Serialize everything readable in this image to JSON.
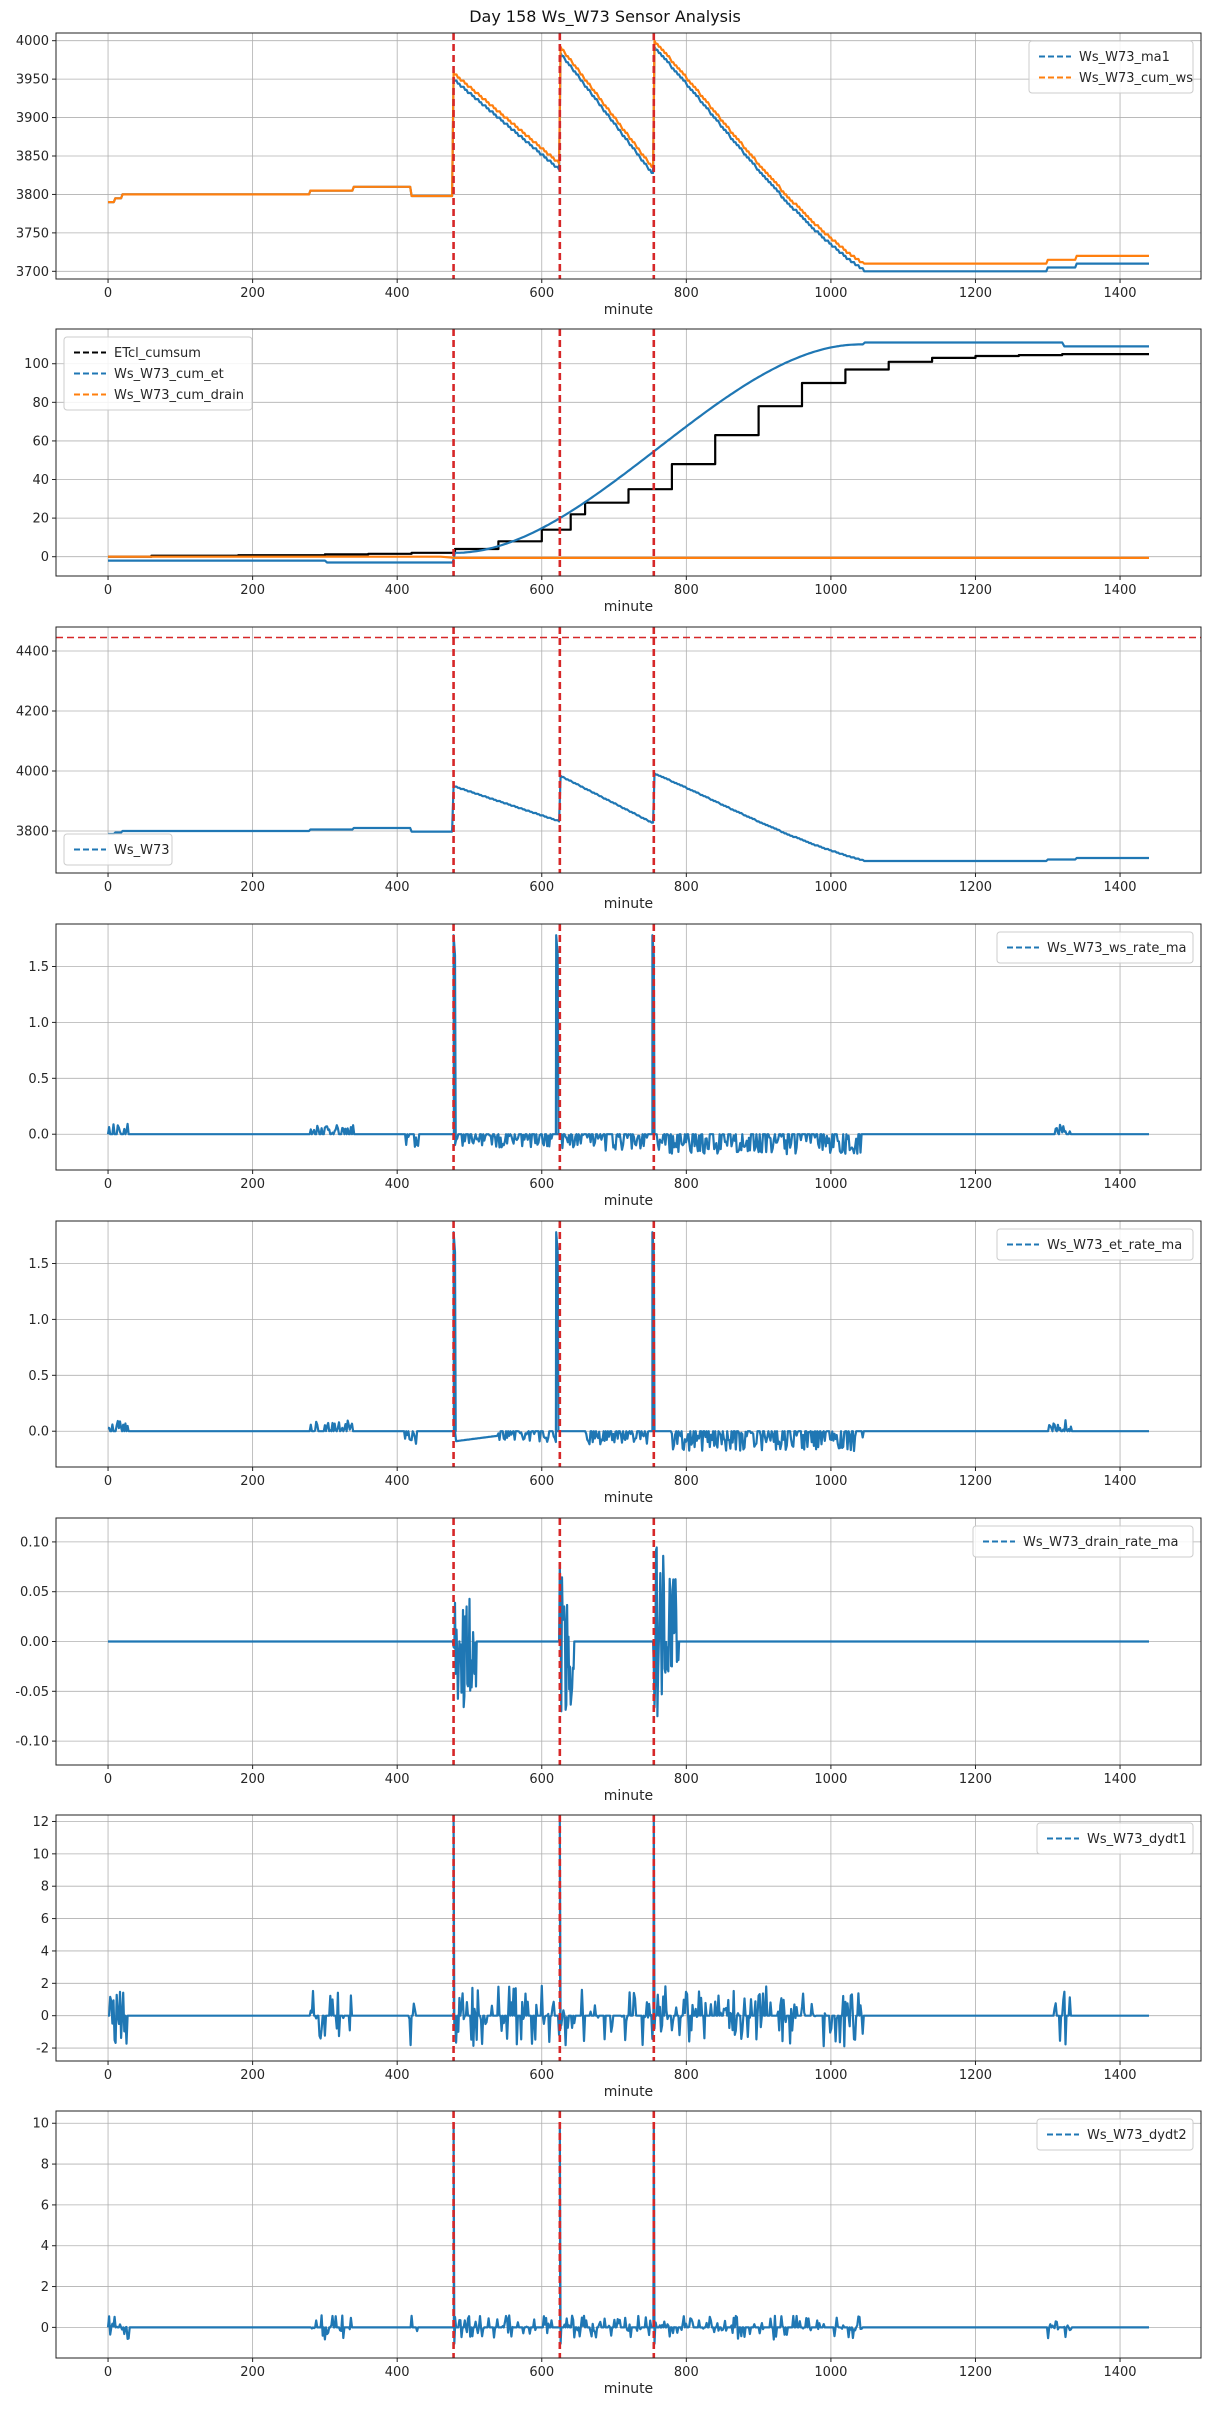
{
  "figure": {
    "title": "Day 158 Ws_W73 Sensor Analysis"
  },
  "colors": {
    "blue": "#1f77b4",
    "orange": "#ff7f0e",
    "black": "#000000",
    "red": "#d62728",
    "grid": "#b0b0b0"
  },
  "event_minutes": [
    478,
    625,
    755
  ],
  "chart_data": [
    {
      "type": "line",
      "title": "",
      "xlabel": "minute",
      "ylabel": "",
      "xlim": [
        -72,
        1512
      ],
      "ylim": [
        3690,
        4010
      ],
      "xticks": [
        0,
        200,
        400,
        600,
        800,
        1000,
        1200,
        1400
      ],
      "yticks": [
        3700,
        3750,
        3800,
        3850,
        3900,
        3950,
        4000
      ],
      "legend_loc": "top-right",
      "series": [
        {
          "name": "Ws_W73_ma1",
          "color": "#1f77b4",
          "style": "dashed",
          "profile": "weight_shifted"
        },
        {
          "name": "Ws_W73_cum_ws",
          "color": "#ff7f0e",
          "style": "dashed",
          "profile": "weight"
        }
      ]
    },
    {
      "type": "line",
      "title": "",
      "xlabel": "minute",
      "ylabel": "",
      "xlim": [
        -72,
        1512
      ],
      "ylim": [
        -10,
        118
      ],
      "xticks": [
        0,
        200,
        400,
        600,
        800,
        1000,
        1200,
        1400
      ],
      "yticks": [
        0,
        20,
        40,
        60,
        80,
        100
      ],
      "legend_loc": "top-left",
      "series": [
        {
          "name": "ETcl_cumsum",
          "color": "#000000",
          "style": "dashed",
          "profile": "etcl_step"
        },
        {
          "name": "Ws_W73_cum_et",
          "color": "#1f77b4",
          "style": "dashed",
          "profile": "cum_et"
        },
        {
          "name": "Ws_W73_cum_drain",
          "color": "#ff7f0e",
          "style": "dashed",
          "profile": "cum_drain"
        }
      ]
    },
    {
      "type": "line",
      "title": "",
      "xlabel": "minute",
      "ylabel": "",
      "xlim": [
        -72,
        1512
      ],
      "ylim": [
        3660,
        4480
      ],
      "xticks": [
        0,
        200,
        400,
        600,
        800,
        1000,
        1200,
        1400
      ],
      "yticks": [
        3800,
        4000,
        4200,
        4400
      ],
      "hline": 4445,
      "legend_loc": "bottom-left",
      "series": [
        {
          "name": "Ws_W73",
          "color": "#1f77b4",
          "style": "dashed",
          "profile": "weight_shifted"
        }
      ]
    },
    {
      "type": "line",
      "title": "",
      "xlabel": "minute",
      "ylabel": "",
      "xlim": [
        -72,
        1512
      ],
      "ylim": [
        -0.32,
        1.88
      ],
      "xticks": [
        0,
        200,
        400,
        600,
        800,
        1000,
        1200,
        1400
      ],
      "yticks": [
        0.0,
        0.5,
        1.0,
        1.5
      ],
      "legend_loc": "top-right",
      "series": [
        {
          "name": "Ws_W73_ws_rate_ma",
          "color": "#1f77b4",
          "style": "dashed",
          "profile": "rate"
        }
      ]
    },
    {
      "type": "line",
      "title": "",
      "xlabel": "minute",
      "ylabel": "",
      "xlim": [
        -72,
        1512
      ],
      "ylim": [
        -0.32,
        1.88
      ],
      "xticks": [
        0,
        200,
        400,
        600,
        800,
        1000,
        1200,
        1400
      ],
      "yticks": [
        0.0,
        0.5,
        1.0,
        1.5
      ],
      "legend_loc": "top-right",
      "series": [
        {
          "name": "Ws_W73_et_rate_ma",
          "color": "#1f77b4",
          "style": "dashed",
          "profile": "rate_et"
        }
      ]
    },
    {
      "type": "line",
      "title": "",
      "xlabel": "minute",
      "ylabel": "",
      "xlim": [
        -72,
        1512
      ],
      "ylim": [
        -0.124,
        0.124
      ],
      "xticks": [
        0,
        200,
        400,
        600,
        800,
        1000,
        1200,
        1400
      ],
      "yticks": [
        -0.1,
        -0.05,
        0.0,
        0.05,
        0.1
      ],
      "legend_loc": "top-right",
      "series": [
        {
          "name": "Ws_W73_drain_rate_ma",
          "color": "#1f77b4",
          "style": "dashed",
          "profile": "drain"
        }
      ]
    },
    {
      "type": "line",
      "title": "",
      "xlabel": "minute",
      "ylabel": "",
      "xlim": [
        -72,
        1512
      ],
      "ylim": [
        -2.8,
        12.4
      ],
      "xticks": [
        0,
        200,
        400,
        600,
        800,
        1000,
        1200,
        1400
      ],
      "yticks": [
        -2,
        0,
        2,
        4,
        6,
        8,
        10,
        12
      ],
      "legend_loc": "top-right",
      "series": [
        {
          "name": "Ws_W73_dydt1",
          "color": "#1f77b4",
          "style": "dashed",
          "profile": "dydt1"
        }
      ]
    },
    {
      "type": "line",
      "title": "",
      "xlabel": "minute",
      "ylabel": "",
      "xlim": [
        -72,
        1512
      ],
      "ylim": [
        -1.5,
        10.6
      ],
      "xticks": [
        0,
        200,
        400,
        600,
        800,
        1000,
        1200,
        1400
      ],
      "yticks": [
        0,
        2,
        4,
        6,
        8,
        10
      ],
      "legend_loc": "top-right",
      "series": [
        {
          "name": "Ws_W73_dydt2",
          "color": "#1f77b4",
          "style": "dashed",
          "profile": "dydt2"
        }
      ]
    }
  ]
}
